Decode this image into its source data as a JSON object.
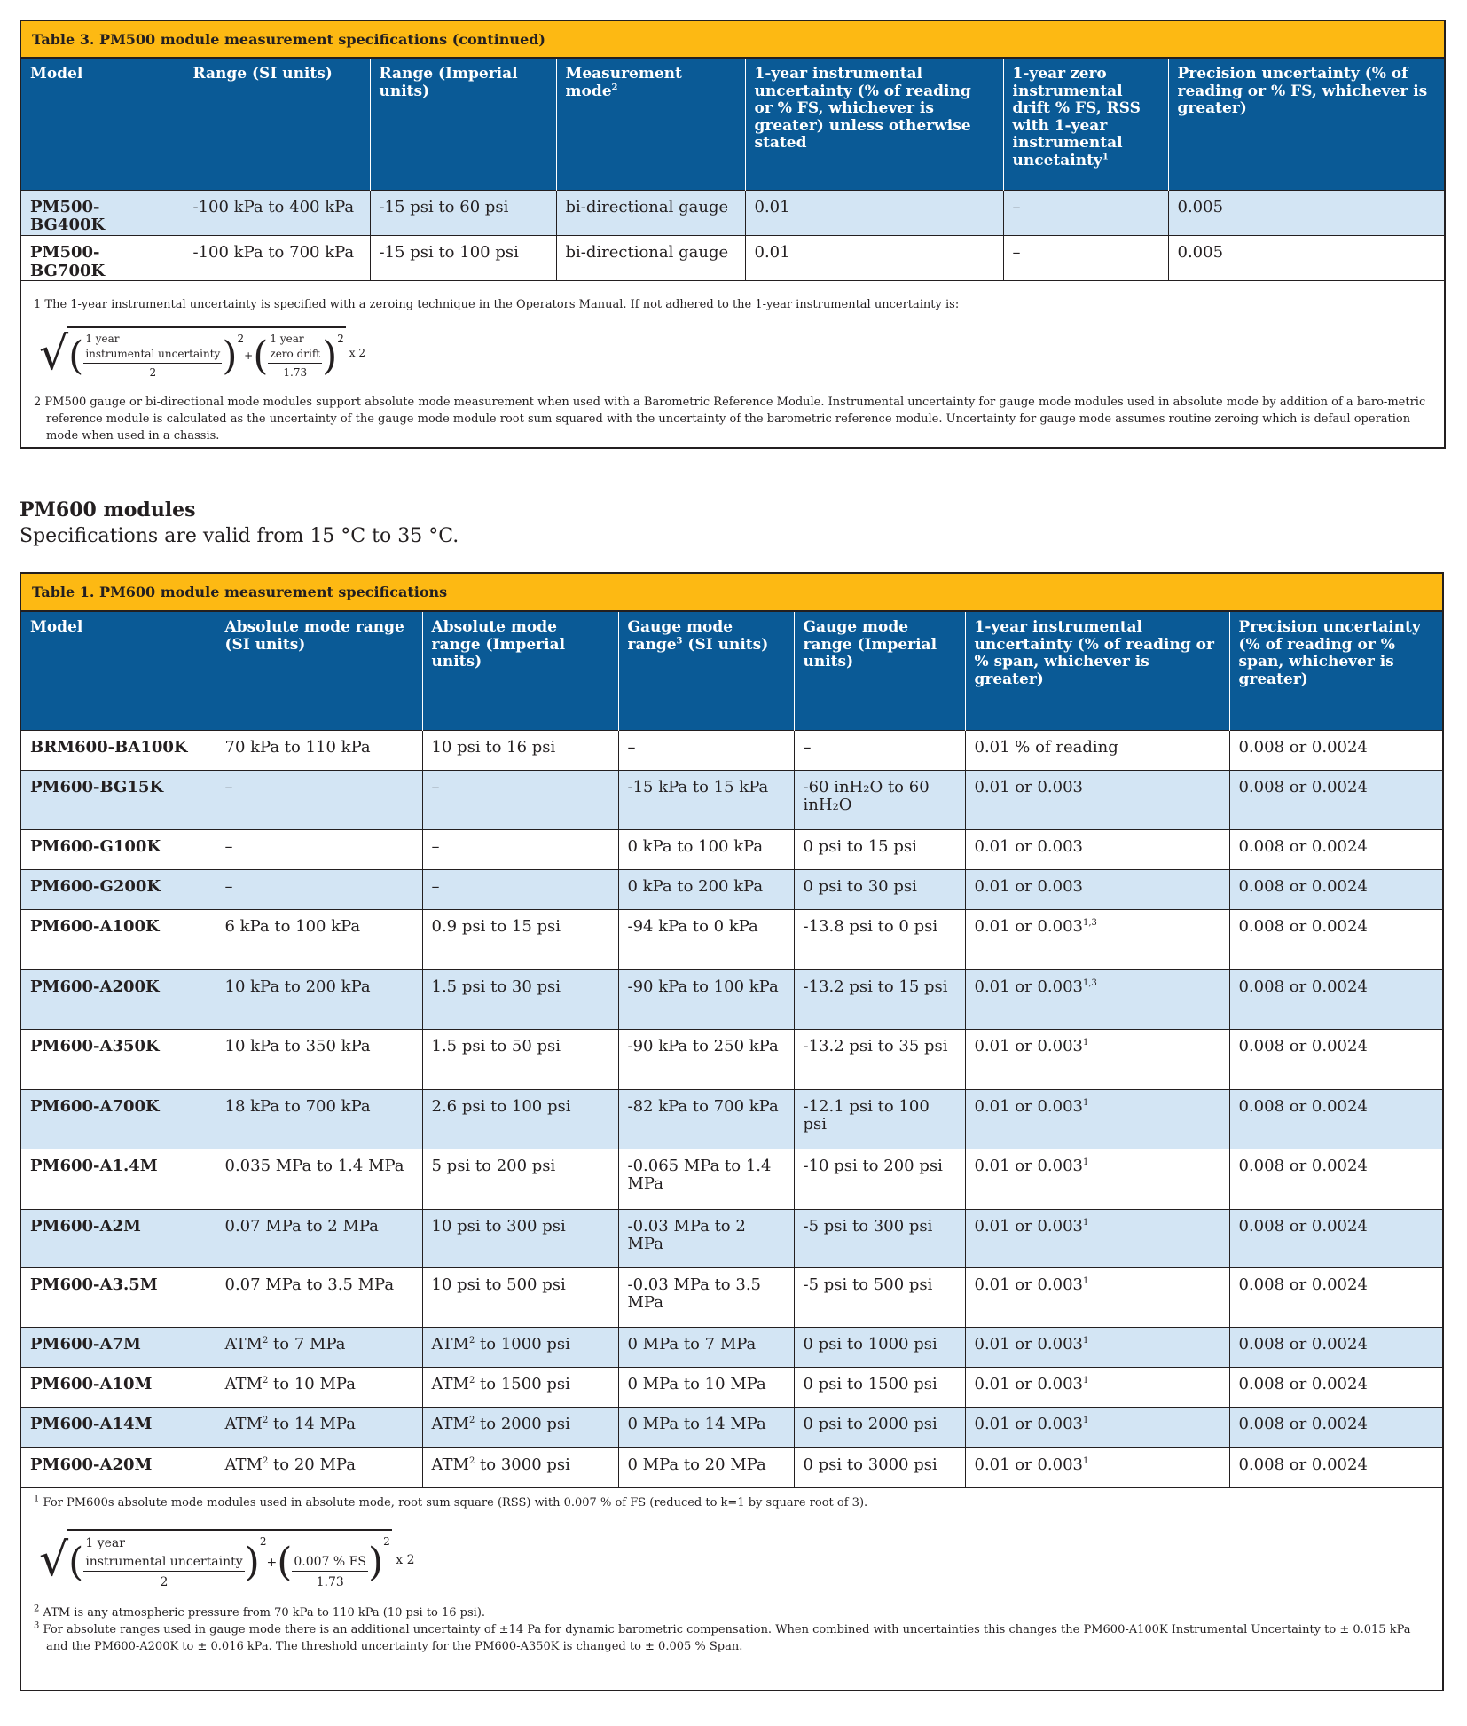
{
  "table3": {
    "caption": "Table 3. PM500 module measurement specifications (continued)",
    "headers": [
      "Model",
      "Range (SI units)",
      "Range (Imperial units)",
      [
        {
          "t": "Measurement mode"
        },
        {
          "sup": "2"
        }
      ],
      "1-year instrumental uncertainty (% of reading or % FS, whichever is greater) unless otherwise stated",
      [
        {
          "t": "1-year zero instrumental drift % FS, RSS with 1-year instrumental uncetainty"
        },
        {
          "sup": "1"
        }
      ],
      "Precision uncertainty (% of reading or % FS, whichever is greater)"
    ],
    "rows": [
      [
        "PM500-BG400K",
        "-100 kPa to 400 kPa",
        "-15 psi to 60 psi",
        "bi-directional gauge",
        "0.01",
        "–",
        "0.005"
      ],
      [
        "PM500-BG700K",
        "-100 kPa to 700 kPa",
        "-15 psi to 100 psi",
        "bi-directional gauge",
        "0.01",
        "–",
        "0.005"
      ]
    ],
    "note1": "1 The 1-year instrumental uncertainty is specified with a zeroing technique in the Operators Manual.  If not adhered to the 1-year instrumental uncertainty is:",
    "formula": {
      "num1a": "1 year",
      "num1b": "instrumental uncertainty",
      "den1": "2",
      "num2a": "1 year",
      "num2b": "zero drift",
      "den2": "1.73",
      "exp": "2",
      "plus": "+",
      "times": "x 2"
    },
    "note2": "2 PM500 gauge or bi-directional mode modules support absolute mode measurement when used with a Barometric Reference Module. Instrumental uncertainty for gauge mode modules used in absolute mode by addition of a baro-metric reference module is calculated as the uncertainty of the gauge mode module root sum squared with the uncertainty of the barometric reference module. Uncertainty for gauge mode assumes routine zeroing which is defaul operation mode when used in a chassis."
  },
  "section": {
    "title": "PM600 modules",
    "subtitle": "Specifications are valid from 15 °C to 35 °C."
  },
  "table1": {
    "caption": "Table 1. PM600 module measurement specifications",
    "headers": [
      "Model",
      "Absolute mode range (SI units)",
      "Absolute mode range (Imperial units)",
      [
        {
          "t": "Gauge mode range"
        },
        {
          "sup": "3"
        },
        {
          "t": " (SI units)"
        }
      ],
      "Gauge mode range (Imperial units)",
      "1-year instrumental uncertainty (% of reading or % span, whichever is greater)",
      "Precision uncertainty (% of reading or % span, whichever is greater)"
    ],
    "rows": [
      [
        "BRM600-BA100K",
        "70 kPa to 110 kPa",
        "10 psi to 16 psi",
        "–",
        "–",
        "0.01 % of reading",
        "0.008 or 0.0024"
      ],
      [
        "PM600-BG15K",
        "–",
        "–",
        "-15 kPa to 15 kPa",
        "-60 inH₂O to 60 inH₂O",
        "0.01 or 0.003",
        "0.008 or 0.0024"
      ],
      [
        "PM600-G100K",
        "–",
        "–",
        "0 kPa to 100 kPa",
        "0 psi to 15 psi",
        "0.01 or 0.003",
        "0.008 or 0.0024"
      ],
      [
        "PM600-G200K",
        "–",
        "–",
        "0 kPa to 200 kPa",
        "0 psi to 30 psi",
        "0.01 or 0.003",
        "0.008 or 0.0024"
      ],
      [
        "PM600-A100K",
        "6 kPa to 100 kPa",
        "0.9 psi to 15 psi",
        "-94 kPa to 0 kPa",
        "-13.8 psi to 0 psi",
        [
          {
            "t": "0.01 or 0.003"
          },
          {
            "sup": "1,3"
          }
        ],
        "0.008 or 0.0024"
      ],
      [
        "PM600-A200K",
        "10 kPa to 200 kPa",
        "1.5 psi to 30 psi",
        "-90 kPa to 100 kPa",
        "-13.2 psi to 15 psi",
        [
          {
            "t": "0.01 or 0.003"
          },
          {
            "sup": "1,3"
          }
        ],
        "0.008 or 0.0024"
      ],
      [
        "PM600-A350K",
        "10 kPa to 350 kPa",
        "1.5 psi to 50 psi",
        "-90 kPa to 250 kPa",
        "-13.2 psi to 35 psi",
        [
          {
            "t": "0.01 or 0.003"
          },
          {
            "sup": "1"
          }
        ],
        "0.008 or 0.0024"
      ],
      [
        "PM600-A700K",
        "18 kPa to 700 kPa",
        "2.6 psi to 100 psi",
        "-82 kPa to 700 kPa",
        "-12.1 psi to 100 psi",
        [
          {
            "t": "0.01 or 0.003"
          },
          {
            "sup": "1"
          }
        ],
        "0.008 or 0.0024"
      ],
      [
        "PM600-A1.4M",
        "0.035 MPa to 1.4 MPa",
        "5 psi to 200 psi",
        "-0.065 MPa to 1.4 MPa",
        "-10 psi to 200 psi",
        [
          {
            "t": "0.01 or 0.003"
          },
          {
            "sup": "1"
          }
        ],
        "0.008 or 0.0024"
      ],
      [
        "PM600-A2M",
        "0.07 MPa to 2 MPa",
        "10 psi to 300 psi",
        "-0.03 MPa to 2 MPa",
        "-5 psi to 300 psi",
        [
          {
            "t": "0.01 or 0.003"
          },
          {
            "sup": "1"
          }
        ],
        "0.008 or 0.0024"
      ],
      [
        "PM600-A3.5M",
        "0.07 MPa to 3.5 MPa",
        "10 psi to 500 psi",
        "-0.03 MPa to 3.5 MPa",
        "-5 psi to 500 psi",
        [
          {
            "t": "0.01 or 0.003"
          },
          {
            "sup": "1"
          }
        ],
        "0.008 or 0.0024"
      ],
      [
        "PM600-A7M",
        [
          {
            "t": "ATM"
          },
          {
            "sup": "2"
          },
          {
            "t": " to 7 MPa"
          }
        ],
        [
          {
            "t": "ATM"
          },
          {
            "sup": "2"
          },
          {
            "t": " to 1000 psi"
          }
        ],
        "0 MPa to 7 MPa",
        "0 psi to 1000 psi",
        [
          {
            "t": "0.01 or 0.003"
          },
          {
            "sup": "1"
          }
        ],
        "0.008 or 0.0024"
      ],
      [
        "PM600-A10M",
        [
          {
            "t": "ATM"
          },
          {
            "sup": "2"
          },
          {
            "t": " to 10 MPa"
          }
        ],
        [
          {
            "t": "ATM"
          },
          {
            "sup": "2"
          },
          {
            "t": " to 1500 psi"
          }
        ],
        "0 MPa to 10 MPa",
        "0 psi to 1500 psi",
        [
          {
            "t": "0.01 or 0.003"
          },
          {
            "sup": "1"
          }
        ],
        "0.008 or 0.0024"
      ],
      [
        "PM600-A14M",
        [
          {
            "t": "ATM"
          },
          {
            "sup": "2"
          },
          {
            "t": " to 14 MPa"
          }
        ],
        [
          {
            "t": "ATM"
          },
          {
            "sup": "2"
          },
          {
            "t": " to 2000 psi"
          }
        ],
        "0 MPa to 14 MPa",
        "0 psi to 2000 psi",
        [
          {
            "t": "0.01 or 0.003"
          },
          {
            "sup": "1"
          }
        ],
        "0.008 or 0.0024"
      ],
      [
        "PM600-A20M",
        [
          {
            "t": "ATM"
          },
          {
            "sup": "2"
          },
          {
            "t": " to 20 MPa"
          }
        ],
        [
          {
            "t": "ATM"
          },
          {
            "sup": "2"
          },
          {
            "t": " to 3000 psi"
          }
        ],
        "0 MPa to 20 MPa",
        "0 psi to 3000 psi",
        [
          {
            "t": "0.01 or 0.003"
          },
          {
            "sup": "1"
          }
        ],
        "0.008 or 0.0024"
      ]
    ],
    "note1_mark": "1",
    "note1": "For PM600s absolute mode modules used in absolute mode, root sum square (RSS) with 0.007 % of FS (reduced to k=1 by square root of 3).",
    "formula": {
      "num1a": "1 year",
      "num1b": "instrumental uncertainty",
      "den1": "2",
      "num2a": "",
      "num2b": "0.007 % FS",
      "den2": "1.73",
      "exp": "2",
      "plus": "+",
      "times": "x 2"
    },
    "note2_mark": "2",
    "note2": "ATM is any atmospheric pressure from 70 kPa to 110 kPa (10 psi to 16 psi).",
    "note3_mark": "3",
    "note3": "For absolute ranges used in gauge mode there is an additional uncertainty of ±14 Pa for dynamic barometric compensation. When combined with uncertainties this changes the PM600-A100K Instrumental Uncertainty to ± 0.015 kPa and the PM600-A200K to ± 0.016 kPa. The threshold uncertainty for the PM600-A350K is changed to  ± 0.005 % Span."
  },
  "colors": {
    "caption": "#fdb913",
    "header": "#0a5a96",
    "row_alt": "#d3e5f4"
  }
}
